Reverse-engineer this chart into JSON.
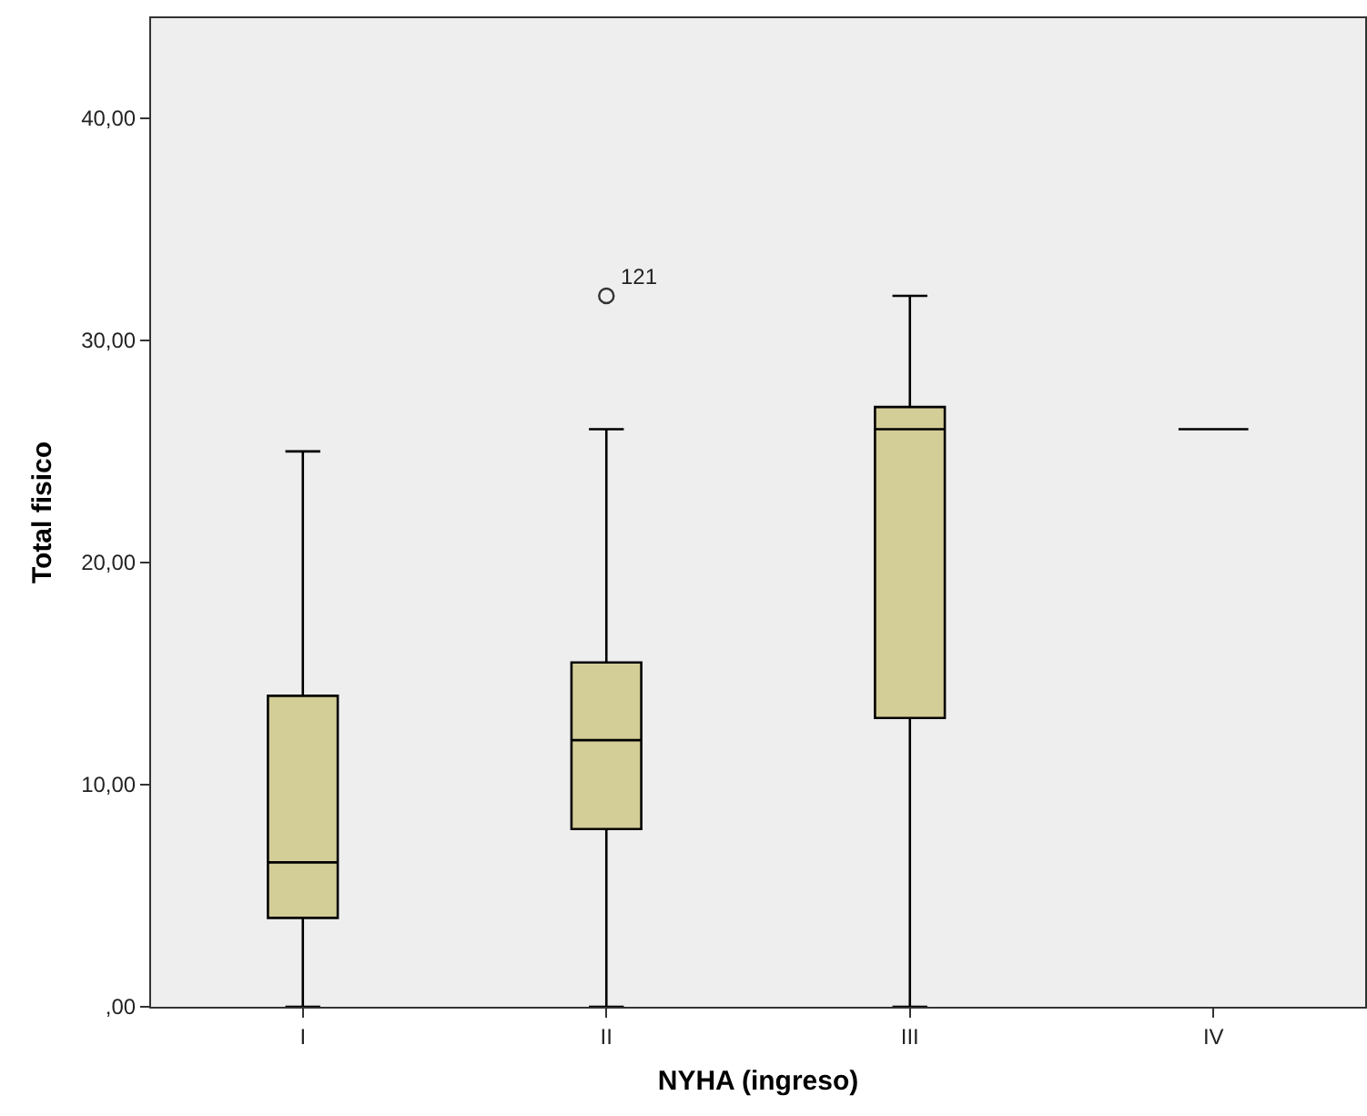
{
  "chart_data": {
    "type": "box",
    "xlabel": "NYHA (ingreso)",
    "ylabel": "Total fisico",
    "categories": [
      "I",
      "II",
      "III",
      "IV"
    ],
    "boxes": [
      {
        "low": 0,
        "q1": 4,
        "median": 6.5,
        "q3": 14,
        "high": 25
      },
      {
        "low": 0,
        "q1": 8,
        "median": 12,
        "q3": 15.5,
        "high": 26
      },
      {
        "low": 0,
        "q1": 13,
        "median": 26,
        "q3": 27,
        "high": 32
      },
      {
        "low": 26,
        "q1": 26,
        "median": 26,
        "q3": 26,
        "high": 26
      }
    ],
    "colors": [
      "#d3cd97",
      "#d3cd97",
      "#d3cd97",
      "#000000"
    ],
    "series": [
      {
        "type": "scatter",
        "x": [
          "II"
        ],
        "values": [
          32
        ],
        "color": "#333333"
      }
    ],
    "marker": "circle",
    "ylim": [
      0,
      44.5
    ],
    "yticks": [
      {
        "value": 0,
        "label": ",00"
      },
      {
        "value": 10,
        "label": "10,00"
      },
      {
        "value": 20,
        "label": "20,00"
      },
      {
        "value": 30,
        "label": "30,00"
      },
      {
        "value": 40,
        "label": "40,00"
      }
    ],
    "annotations": [
      {
        "text": "121",
        "x": "II",
        "y": 32
      }
    ]
  }
}
